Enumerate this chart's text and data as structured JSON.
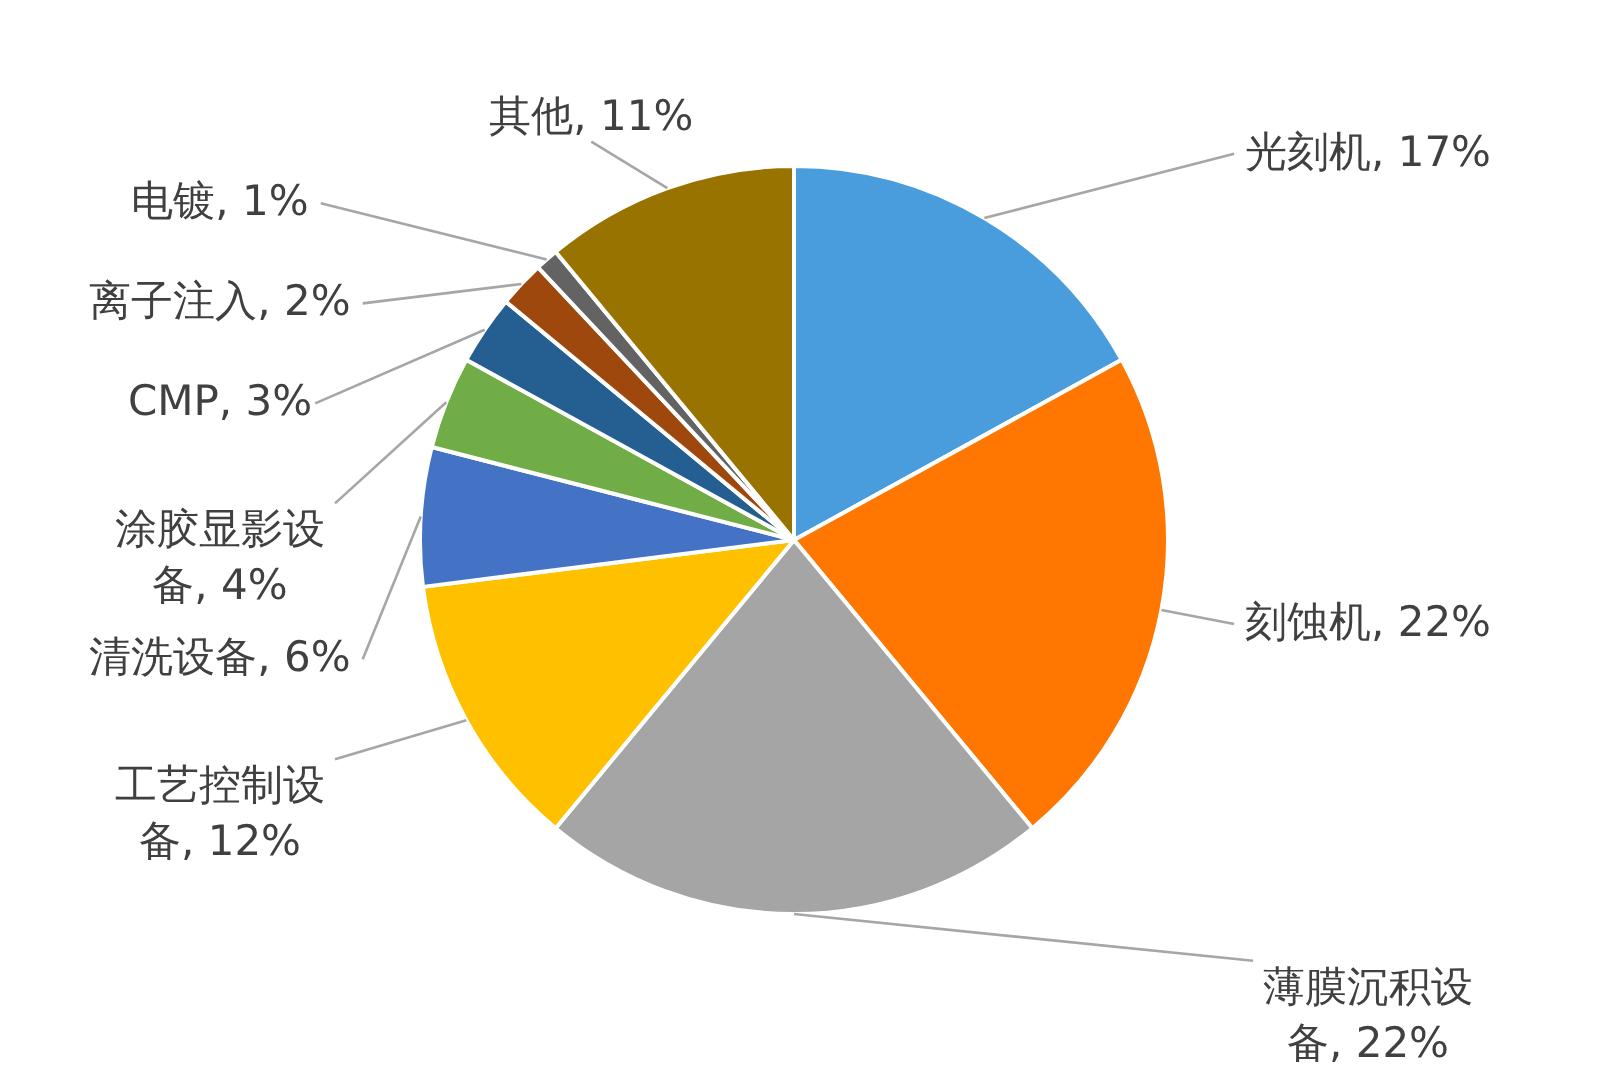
{
  "chart_data": {
    "type": "pie",
    "categories": [
      "光刻机",
      "刻蚀机",
      "薄膜沉积设备",
      "工艺控制设备",
      "清洗设备",
      "涂胶显影设备",
      "CMP",
      "离子注入",
      "电镀",
      "其他"
    ],
    "values": [
      17,
      22,
      22,
      12,
      6,
      4,
      3,
      2,
      1,
      11
    ],
    "colors": [
      "#4a9ddd",
      "#ff7600",
      "#a5a5a5",
      "#ffc000",
      "#4472c4",
      "#70ad47",
      "#255e91",
      "#9e480e",
      "#636363",
      "#997300"
    ],
    "value_labels": [
      "17%",
      "22%",
      "22%",
      "12%",
      "6%",
      "4%",
      "3%",
      "2%",
      "1%",
      "11%"
    ]
  }
}
